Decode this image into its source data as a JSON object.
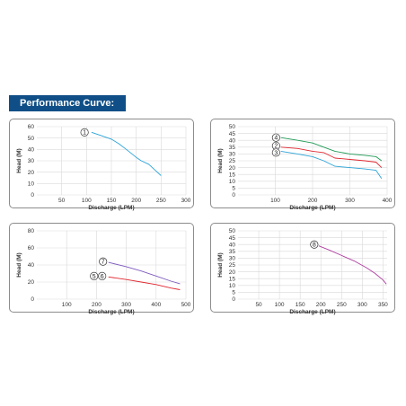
{
  "header": {
    "title": "Performance Curve:"
  },
  "colors": {
    "banner": "#0f4e86",
    "grid": "#d9d9d9",
    "frame": "#8c8c8c"
  },
  "chart_data": [
    {
      "type": "line",
      "xlabel": "Discharge (LPM)",
      "ylabel": "Head (M)",
      "xlim": [
        0,
        300
      ],
      "ylim": [
        0,
        60
      ],
      "xticks": [
        50,
        100,
        150,
        200,
        250,
        300
      ],
      "yticks": [
        0,
        10,
        20,
        30,
        40,
        50,
        60
      ],
      "grid": true,
      "series": [
        {
          "name": "1",
          "color": "#2aa3d8",
          "x": [
            110,
            130,
            150,
            165,
            180,
            200,
            210,
            225,
            240,
            250
          ],
          "y": [
            55,
            52,
            49,
            45,
            40,
            33,
            30,
            27,
            21,
            17
          ]
        }
      ],
      "markers": [
        {
          "label": "1",
          "x": 96,
          "y": 55
        }
      ]
    },
    {
      "type": "line",
      "xlabel": "Discharge (LPM)",
      "ylabel": "Head (M)",
      "xlim": [
        0,
        400
      ],
      "ylim": [
        0,
        50
      ],
      "xticks": [
        100,
        200,
        300,
        400
      ],
      "yticks": [
        0,
        5,
        10,
        15,
        20,
        25,
        30,
        35,
        40,
        45,
        50
      ],
      "grid": true,
      "series": [
        {
          "name": "4",
          "color": "#1f9a55",
          "x": [
            115,
            160,
            200,
            230,
            260,
            300,
            340,
            370,
            385
          ],
          "y": [
            42,
            40,
            38,
            35,
            32,
            30,
            29,
            28,
            25
          ]
        },
        {
          "name": "2",
          "color": "#e0262f",
          "x": [
            115,
            160,
            200,
            230,
            260,
            300,
            340,
            370,
            385
          ],
          "y": [
            35,
            34,
            32,
            31,
            27,
            26,
            25,
            24,
            20
          ]
        },
        {
          "name": "3",
          "color": "#2aa3d8",
          "x": [
            115,
            160,
            200,
            230,
            260,
            300,
            340,
            370,
            385
          ],
          "y": [
            32,
            30,
            28,
            25,
            21,
            20,
            19,
            18,
            12
          ]
        }
      ],
      "markers": [
        {
          "label": "4",
          "x": 102,
          "y": 42
        },
        {
          "label": "2",
          "x": 102,
          "y": 36
        },
        {
          "label": "3",
          "x": 102,
          "y": 31
        }
      ]
    },
    {
      "type": "line",
      "xlabel": "Discharge (LPM)",
      "ylabel": "Head (M)",
      "xlim": [
        0,
        500
      ],
      "ylim": [
        0,
        80
      ],
      "xticks": [
        100,
        200,
        300,
        400,
        500
      ],
      "yticks": [
        0,
        20,
        40,
        60,
        80
      ],
      "grid": true,
      "series": [
        {
          "name": "7",
          "color": "#7e5bbf",
          "x": [
            240,
            300,
            350,
            400,
            450,
            480
          ],
          "y": [
            43,
            38,
            33,
            27,
            21,
            18
          ]
        },
        {
          "name": "5 6",
          "color": "#e0262f",
          "x": [
            240,
            300,
            350,
            400,
            450,
            480
          ],
          "y": [
            26,
            23,
            20,
            17,
            13,
            11
          ]
        }
      ],
      "markers": [
        {
          "label": "7",
          "x": 222,
          "y": 44
        },
        {
          "label": "5",
          "x": 192,
          "y": 27
        },
        {
          "label": "6",
          "x": 219,
          "y": 27
        }
      ]
    },
    {
      "type": "line",
      "xlabel": "Discharge (LPM)",
      "ylabel": "Head (M)",
      "xlim": [
        0,
        360
      ],
      "ylim": [
        0,
        50
      ],
      "xticks": [
        50,
        100,
        150,
        200,
        250,
        300,
        350
      ],
      "yticks": [
        0,
        5,
        10,
        15,
        20,
        25,
        30,
        35,
        40,
        45,
        50
      ],
      "grid": true,
      "series": [
        {
          "name": "8",
          "color": "#b03ca0",
          "x": [
            195,
            220,
            250,
            280,
            310,
            330,
            350,
            358
          ],
          "y": [
            39,
            36,
            32,
            28,
            23,
            19,
            14,
            11
          ]
        }
      ],
      "markers": [
        {
          "label": "8",
          "x": 184,
          "y": 40
        }
      ]
    }
  ]
}
